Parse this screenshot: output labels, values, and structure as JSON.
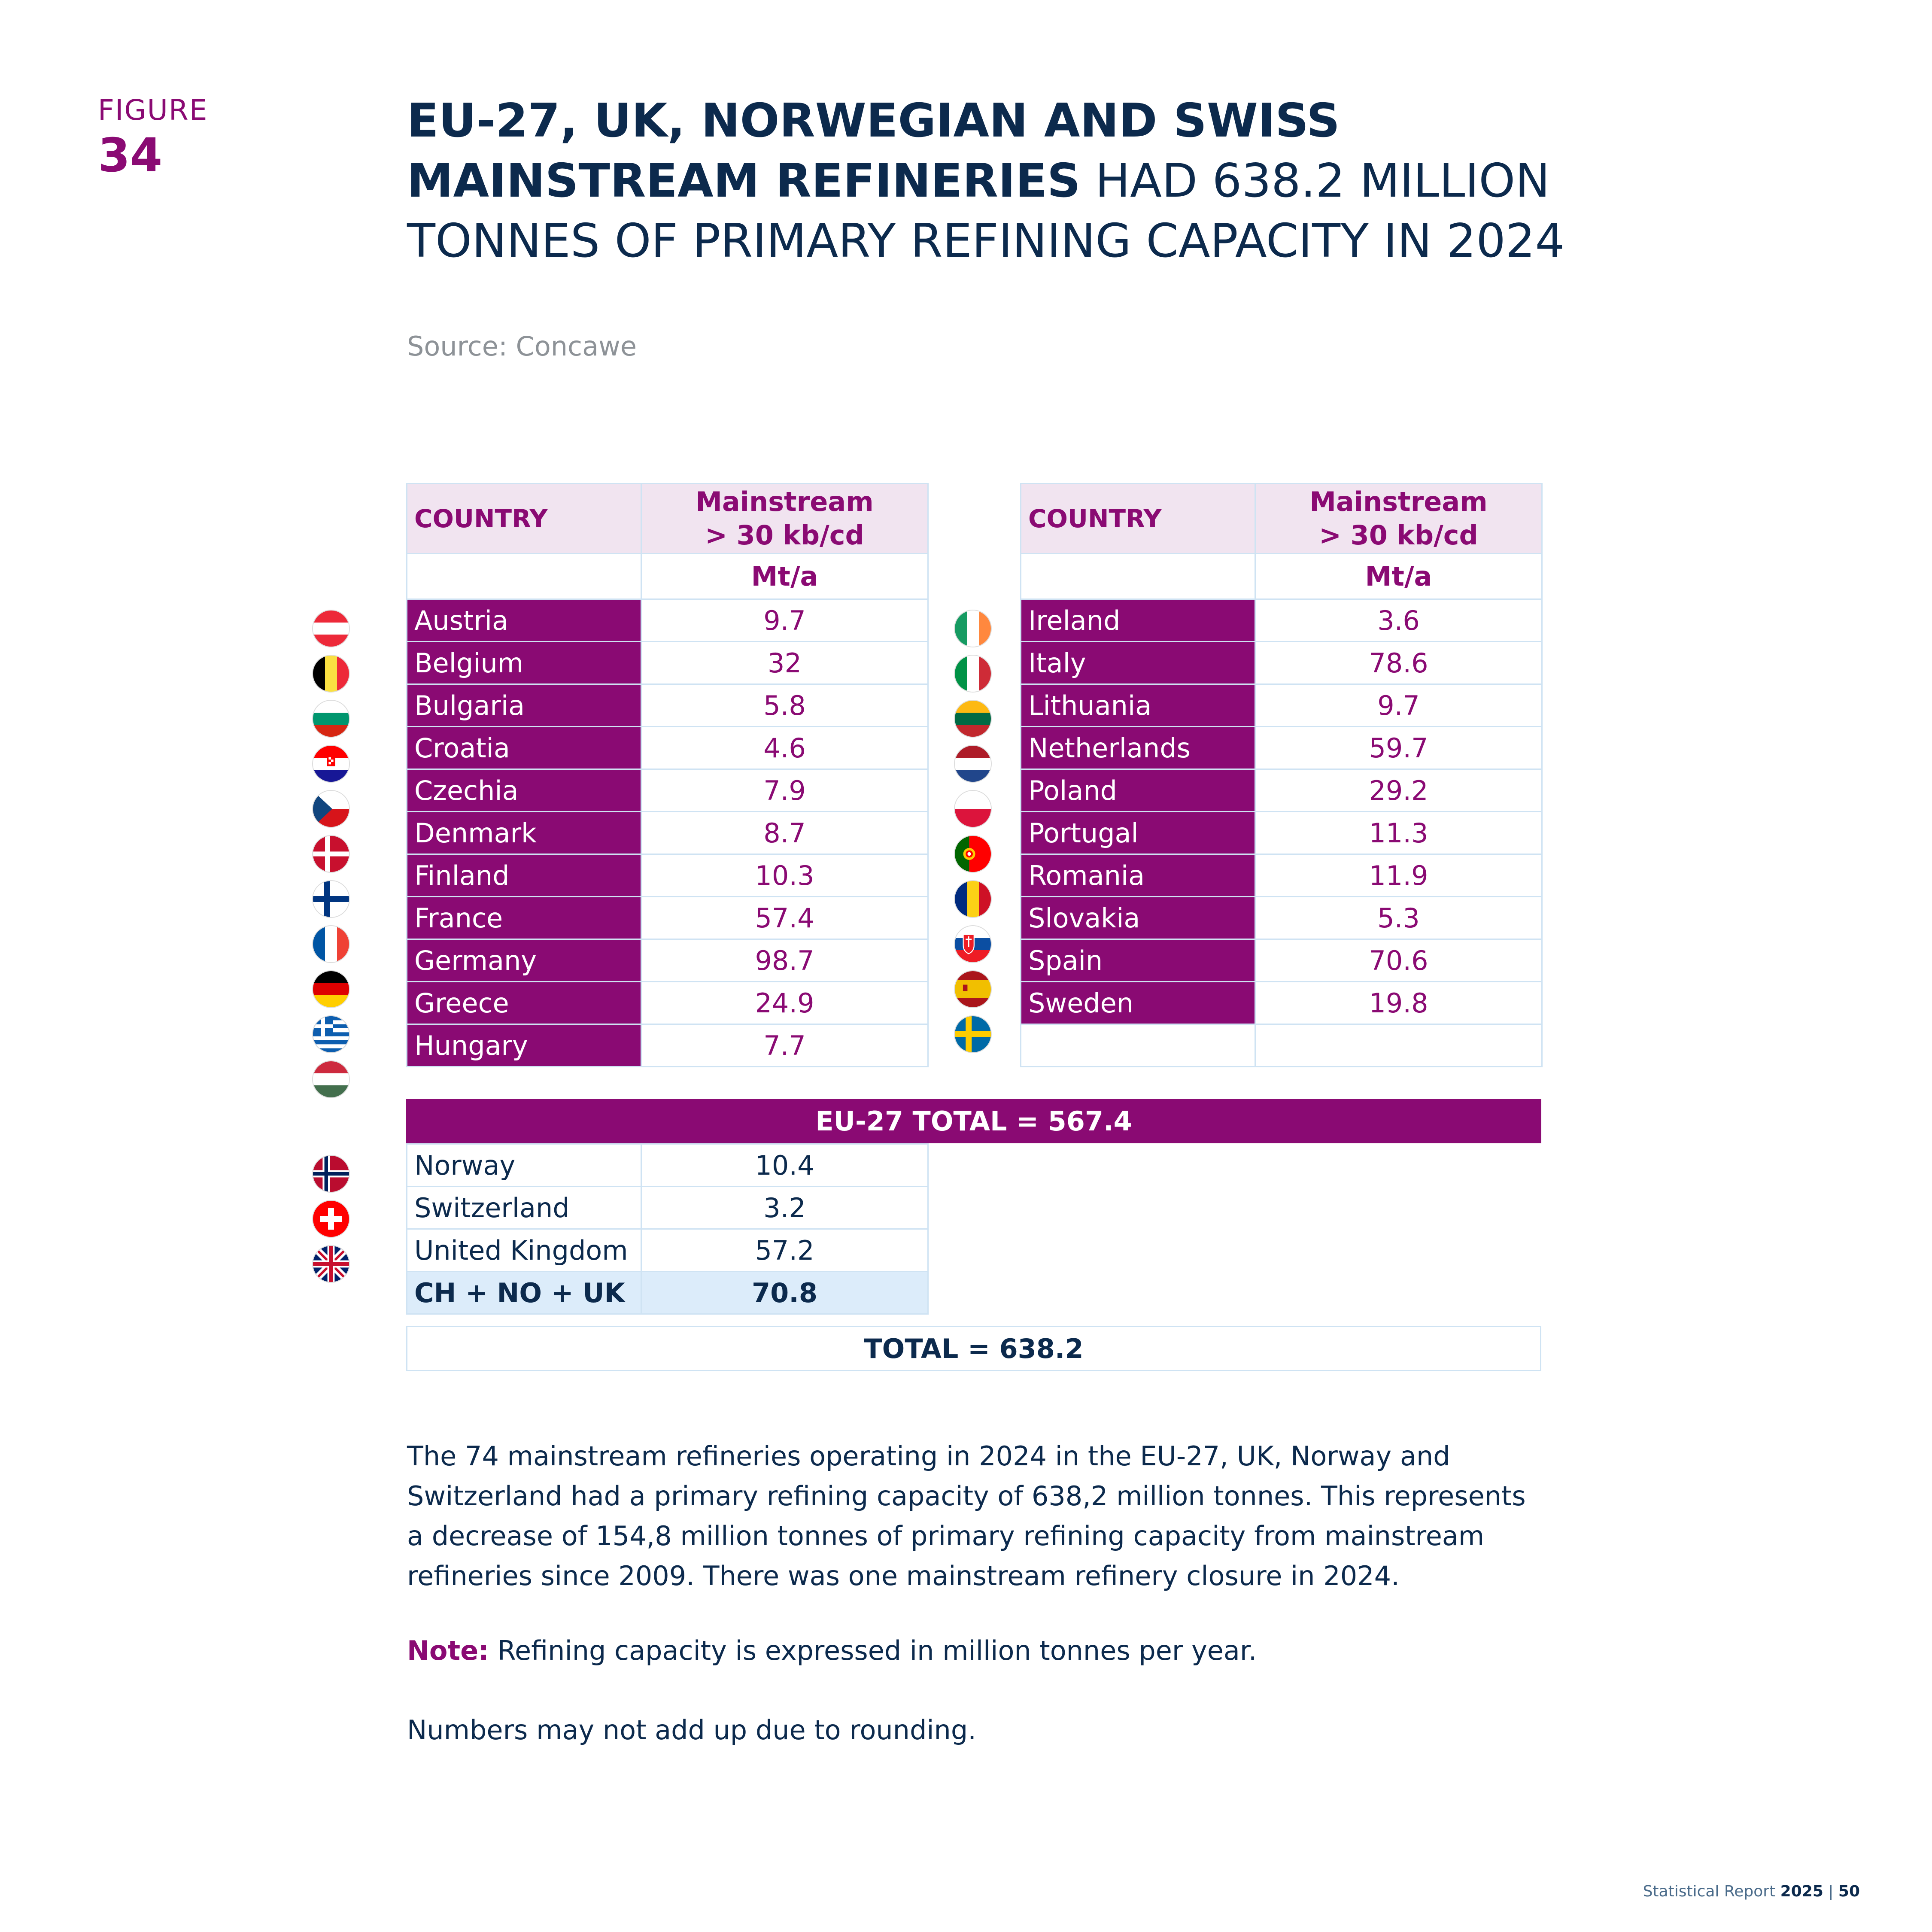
{
  "figure": {
    "label": "FIGURE",
    "number": "34"
  },
  "title": {
    "bold": "EU-27, UK, NORWEGIAN AND SWISS MAINSTREAM REFINERIES",
    "light": " HAD 638.2 MILLION TONNES OF PRIMARY REFINING CAPACITY IN 2024"
  },
  "source": "Source: Concawe",
  "table": {
    "col_country": "COUNTRY",
    "col_value_line1": "Mainstream",
    "col_value_line2": "> 30 kb/cd",
    "unit": "Mt/a",
    "left_rows": [
      {
        "country": "Austria",
        "value": "9.7",
        "flag": "austria-flag-icon"
      },
      {
        "country": "Belgium",
        "value": "32",
        "flag": "belgium-flag-icon"
      },
      {
        "country": "Bulgaria",
        "value": "5.8",
        "flag": "bulgaria-flag-icon"
      },
      {
        "country": "Croatia",
        "value": "4.6",
        "flag": "croatia-flag-icon"
      },
      {
        "country": "Czechia",
        "value": "7.9",
        "flag": "czechia-flag-icon"
      },
      {
        "country": "Denmark",
        "value": "8.7",
        "flag": "denmark-flag-icon"
      },
      {
        "country": "Finland",
        "value": "10.3",
        "flag": "finland-flag-icon"
      },
      {
        "country": "France",
        "value": "57.4",
        "flag": "france-flag-icon"
      },
      {
        "country": "Germany",
        "value": "98.7",
        "flag": "germany-flag-icon"
      },
      {
        "country": "Greece",
        "value": "24.9",
        "flag": "greece-flag-icon"
      },
      {
        "country": "Hungary",
        "value": "7.7",
        "flag": "hungary-flag-icon"
      }
    ],
    "right_rows": [
      {
        "country": "Ireland",
        "value": "3.6",
        "flag": "ireland-flag-icon"
      },
      {
        "country": "Italy",
        "value": "78.6",
        "flag": "italy-flag-icon"
      },
      {
        "country": "Lithuania",
        "value": "9.7",
        "flag": "lithuania-flag-icon"
      },
      {
        "country": "Netherlands",
        "value": "59.7",
        "flag": "netherlands-flag-icon"
      },
      {
        "country": "Poland",
        "value": "29.2",
        "flag": "poland-flag-icon"
      },
      {
        "country": "Portugal",
        "value": "11.3",
        "flag": "portugal-flag-icon"
      },
      {
        "country": "Romania",
        "value": "11.9",
        "flag": "romania-flag-icon"
      },
      {
        "country": "Slovakia",
        "value": "5.3",
        "flag": "slovakia-flag-icon"
      },
      {
        "country": "Spain",
        "value": "70.6",
        "flag": "spain-flag-icon"
      },
      {
        "country": "Sweden",
        "value": "19.8",
        "flag": "sweden-flag-icon"
      }
    ],
    "eu_total": "EU-27 TOTAL = 567.4",
    "non_eu_rows": [
      {
        "country": "Norway",
        "value": "10.4",
        "flag": "norway-flag-icon"
      },
      {
        "country": "Switzerland",
        "value": "3.2",
        "flag": "switzerland-flag-icon"
      },
      {
        "country": "United Kingdom",
        "value": "57.2",
        "flag": "uk-flag-icon"
      }
    ],
    "subtotal": {
      "label": "CH + NO + UK",
      "value": "70.8"
    },
    "grand_total": "TOTAL = 638.2"
  },
  "paragraph": "The 74 mainstream refineries operating in 2024 in the EU-27, UK, Norway and Switzerland had a primary refining capacity of 638,2 million tonnes. This represents a decrease of 154,8 million tonnes of primary refining capacity from mainstream refineries since 2009. There was one mainstream refinery closure in 2024.",
  "note": {
    "label": "Note:",
    "text": " Refining capacity is expressed in million tonnes per year."
  },
  "rounding": "Numbers may not add up due to rounding.",
  "footer": {
    "text": "Statistical Report ",
    "year": "2025",
    "sep": " | ",
    "page": "50"
  },
  "colors": {
    "brand_purple": "#8a0a73",
    "navy": "#0c2a4d",
    "header_pink": "#f1e4f0",
    "subtotal_blue": "#dcecfa",
    "border": "#cfe3f3"
  }
}
